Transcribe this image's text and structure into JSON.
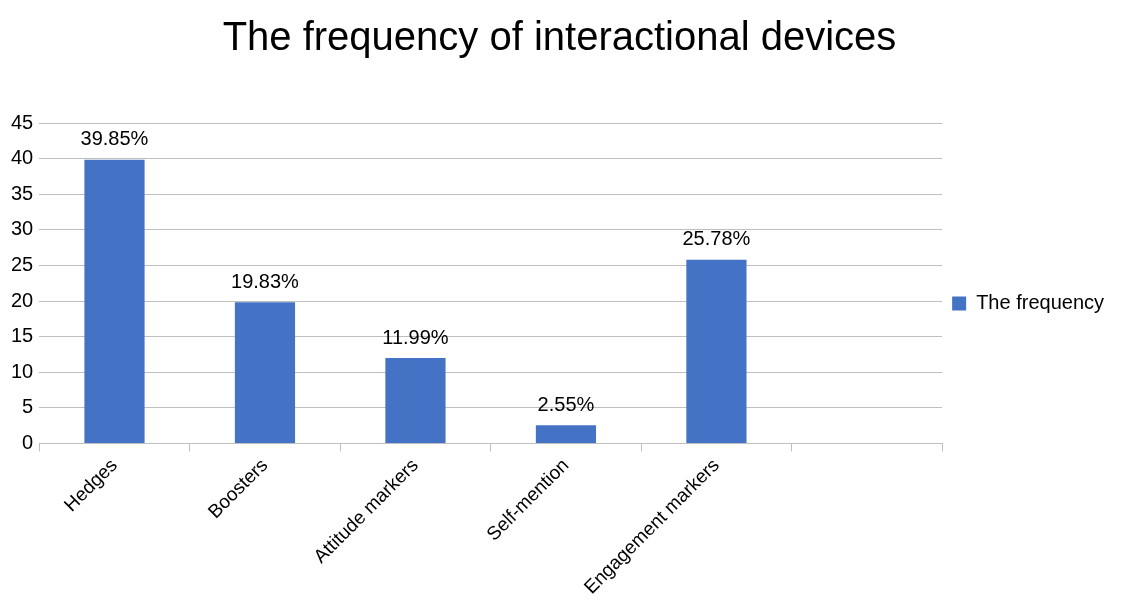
{
  "chart_data": {
    "type": "bar",
    "title": "The frequency of interactional devices",
    "categories": [
      "Hedges",
      "Boosters",
      "Attitude markers",
      "Self-mention",
      "Engagement markers",
      null
    ],
    "series": [
      {
        "name": "The frequency",
        "color": "#4472c4",
        "values": [
          39.85,
          19.83,
          11.99,
          2.55,
          25.78,
          null
        ],
        "value_labels": [
          "39.85%",
          "19.83%",
          "11.99%",
          "2.55%",
          "25.78%",
          null
        ]
      }
    ],
    "ylim": [
      0,
      45
    ],
    "yticks": [
      0,
      5,
      10,
      15,
      20,
      25,
      30,
      35,
      40,
      45
    ],
    "grid": "y",
    "legend": "right"
  }
}
